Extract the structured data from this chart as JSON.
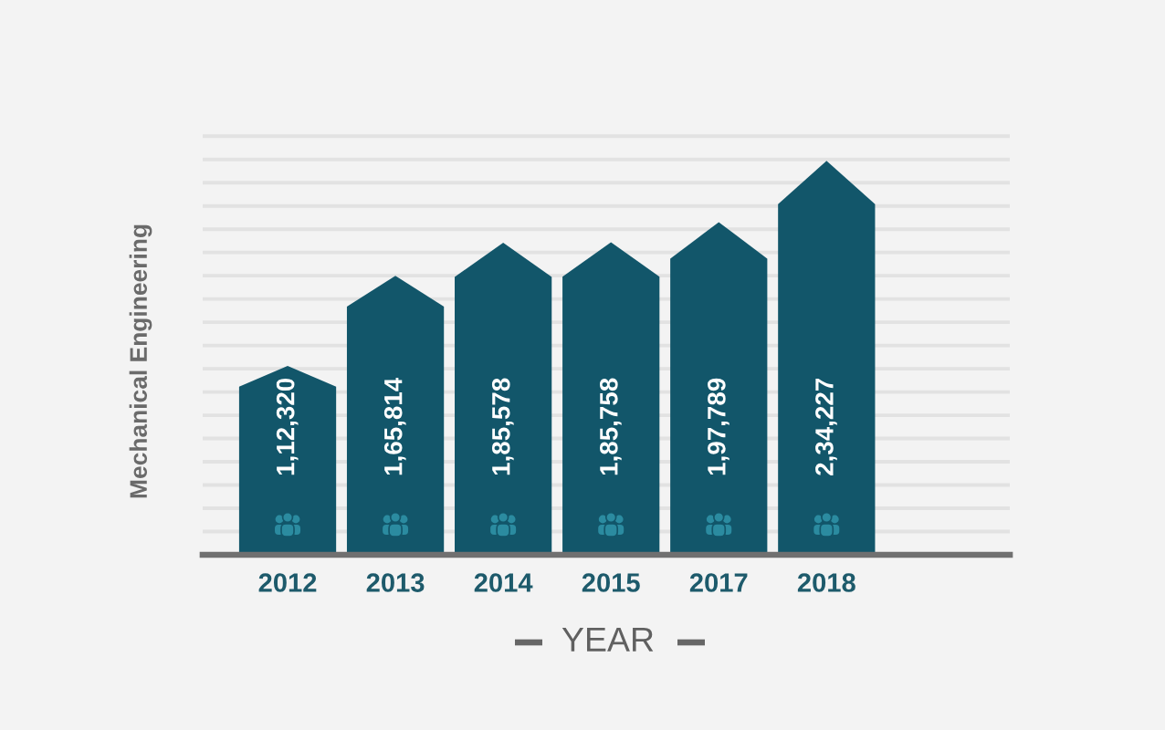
{
  "chart_data": {
    "type": "bar",
    "categories": [
      "2012",
      "2013",
      "2014",
      "2015",
      "2017",
      "2018"
    ],
    "values": [
      112320,
      165814,
      185578,
      185758,
      197789,
      234227
    ],
    "value_labels": [
      "1,12,320",
      "1,65,814",
      "1,85,578",
      "1,85,758",
      "1,97,789",
      "2,34,227"
    ],
    "color": "#12566a",
    "xlabel": "YEAR",
    "ylabel": "Mechanical Engineering",
    "grid": "y",
    "tick_labels": "x"
  }
}
